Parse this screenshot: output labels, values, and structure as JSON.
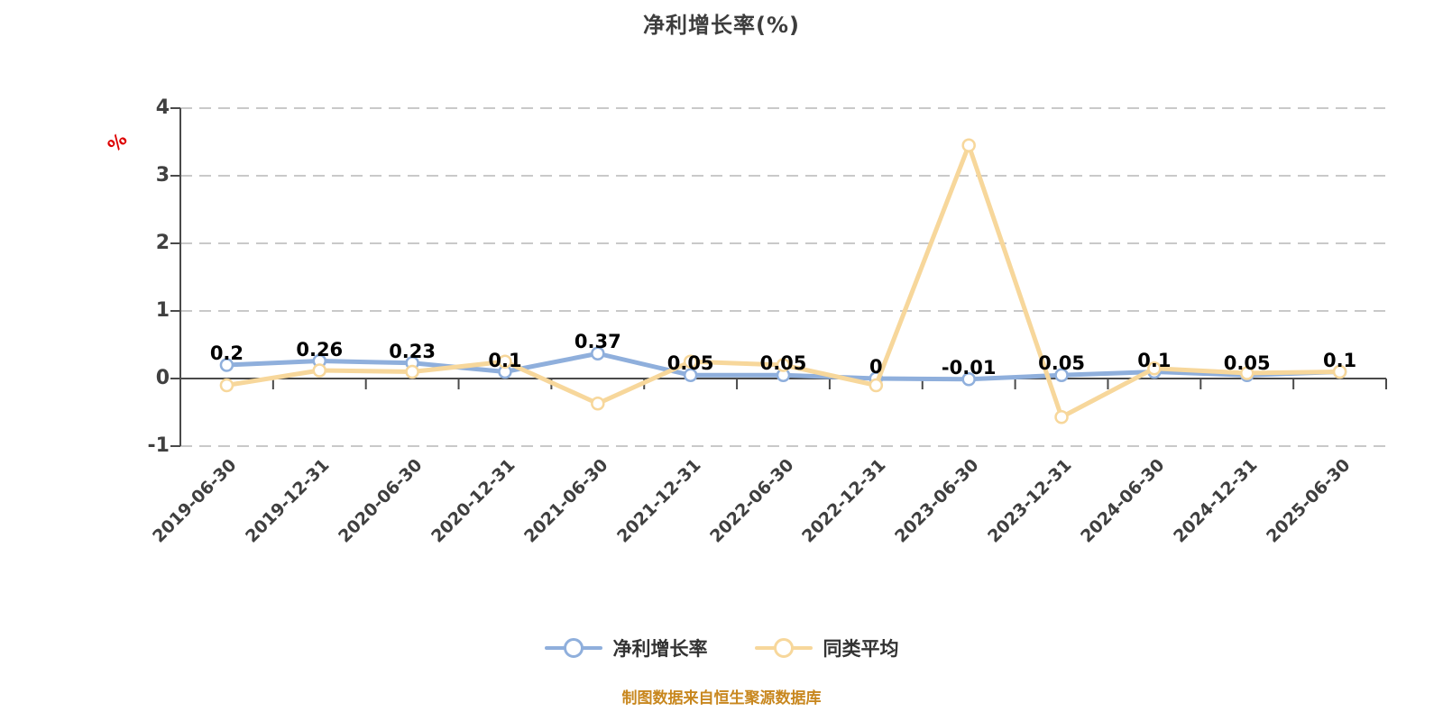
{
  "title": "净利增长率(%)",
  "y_axis_unit_label": "%",
  "footer_note": "制图数据来自恒生聚源数据库",
  "colors": {
    "series_net_profit_growth": "#8fafdc",
    "series_category_average": "#f7d79b",
    "axis_line": "#4a4a4a",
    "gridline": "#c9c9c9",
    "tick_text": "#404040",
    "data_label": "#000000",
    "title_text": "#3d3d3d",
    "unit_label_red": "#dd0000",
    "footer_text": "#c8871e",
    "background": "#ffffff"
  },
  "chart_data": {
    "type": "line",
    "title": "净利增长率(%)",
    "x_categories": [
      "2019-06-30",
      "2019-12-31",
      "2020-06-30",
      "2020-12-31",
      "2021-06-30",
      "2021-12-31",
      "2022-06-30",
      "2022-12-31",
      "2023-06-30",
      "2023-12-31",
      "2024-06-30",
      "2024-12-31",
      "2025-06-30"
    ],
    "series": [
      {
        "name": "净利增长率",
        "color": "#8fafdc",
        "values": [
          0.2,
          0.26,
          0.23,
          0.1,
          0.37,
          0.05,
          0.05,
          0,
          -0.01,
          0.05,
          0.1,
          0.05,
          0.1
        ],
        "point_labels": [
          "0.2",
          "0.26",
          "0.23",
          "0.1",
          "0.37",
          "0.05",
          "0.05",
          "0",
          "-0.01",
          "0.05",
          "0.1",
          "0.05",
          "0.1"
        ]
      },
      {
        "name": "同类平均",
        "color": "#f7d79b",
        "values": [
          -0.1,
          0.12,
          0.1,
          0.25,
          -0.37,
          0.25,
          0.2,
          -0.1,
          3.45,
          -0.57,
          0.15,
          0.08,
          0.1
        ],
        "point_labels": null
      }
    ],
    "ylim": [
      -1,
      4
    ],
    "y_ticks": [
      4,
      3,
      2,
      1,
      0,
      -1
    ],
    "y_unit": "%",
    "grid": "horizontal dashed",
    "legend_position": "bottom"
  }
}
